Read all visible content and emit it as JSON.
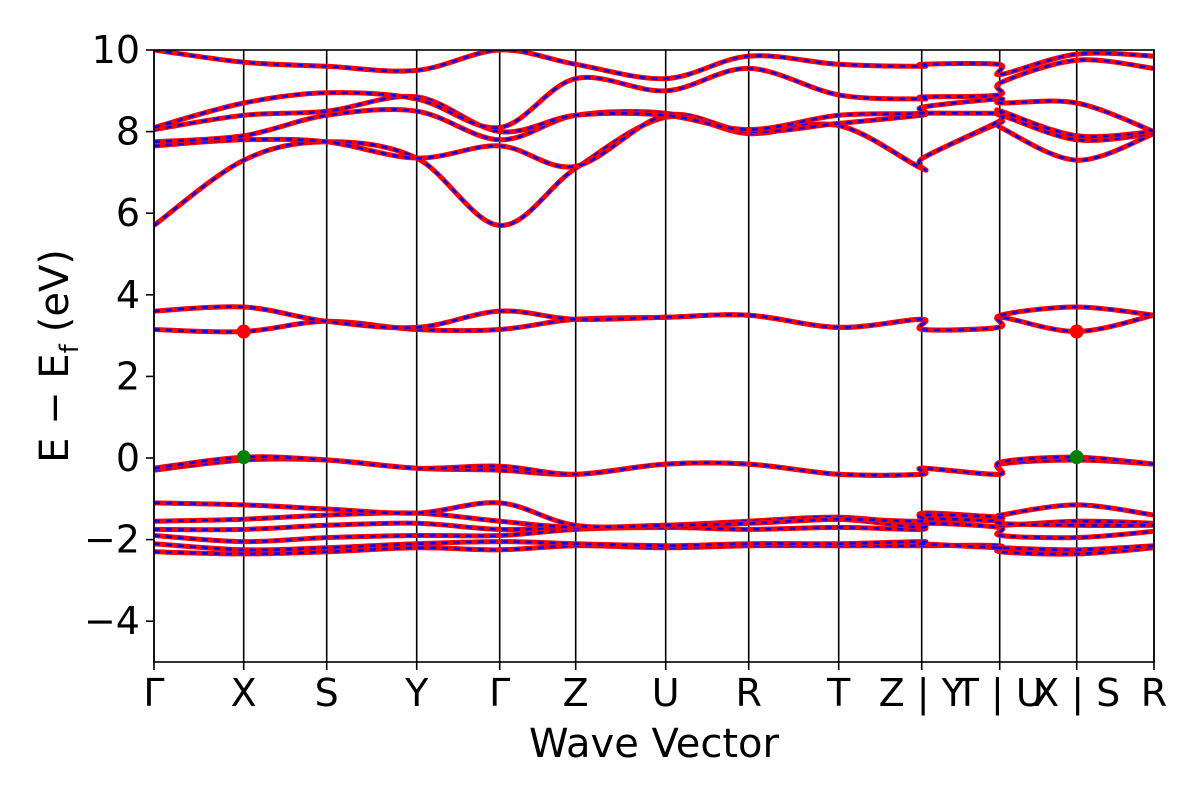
{
  "chart_data": {
    "type": "line",
    "title": "",
    "xlabel": "Wave Vector",
    "ylabel": "E − E",
    "ylabel_sub": "f",
    "ylabel_unit": "(eV)",
    "ylim": [
      -5,
      10
    ],
    "yticks": [
      -4,
      -2,
      0,
      2,
      4,
      6,
      8,
      10
    ],
    "ytick_labels": [
      "−4",
      "−2",
      "0",
      "2",
      "4",
      "6",
      "8",
      "10"
    ],
    "kpoints": [
      {
        "label": "Γ",
        "x": 0.0
      },
      {
        "label": "X",
        "x": 0.0897
      },
      {
        "label": "S",
        "x": 0.1727
      },
      {
        "label": "Y",
        "x": 0.2627
      },
      {
        "label": "Γ",
        "x": 0.3457
      },
      {
        "label": "Z",
        "x": 0.4217
      },
      {
        "label": "U",
        "x": 0.5117
      },
      {
        "label": "R",
        "x": 0.5947
      },
      {
        "label": "T",
        "x": 0.6847
      },
      {
        "label": "Z | Y",
        "x": 0.7677
      },
      {
        "label": "T | U",
        "x": 0.8457
      },
      {
        "label": "X | S",
        "x": 0.9227
      },
      {
        "label": "R",
        "x": 1.0
      }
    ],
    "line_colors": {
      "primary": "#ff0000",
      "secondary": "#0000ff"
    },
    "markers": [
      {
        "x": 0.0897,
        "y": 3.1,
        "color": "#ff0000"
      },
      {
        "x": 0.0897,
        "y": 0.02,
        "color": "#008000"
      },
      {
        "x": 0.9227,
        "y": 3.1,
        "color": "#ff0000"
      },
      {
        "x": 0.9227,
        "y": 0.02,
        "color": "#008000"
      }
    ],
    "bands": [
      {
        "name": "v1",
        "x": [
          0,
          0.0897,
          0.1727,
          0.2627,
          0.3457,
          0.4217,
          0.5117,
          0.5947,
          0.6847,
          0.7677,
          0.7687,
          0.8447,
          0.8467,
          0.9227,
          1.0
        ],
        "y": [
          -2.3,
          -2.35,
          -2.3,
          -2.2,
          -2.25,
          -2.15,
          -2.2,
          -2.15,
          -2.15,
          -2.15,
          -2.15,
          -2.15,
          -2.3,
          -2.35,
          -2.2
        ]
      },
      {
        "name": "v2",
        "x": [
          0,
          0.0897,
          0.1727,
          0.2627,
          0.3457,
          0.4217,
          0.5117,
          0.5947,
          0.6847,
          0.7677,
          0.7687,
          0.8447,
          0.8467,
          0.9227,
          1.0
        ],
        "y": [
          -2.1,
          -2.25,
          -2.2,
          -2.1,
          -2.05,
          -2.1,
          -2.15,
          -2.1,
          -2.1,
          -2.05,
          -2.1,
          -2.2,
          -2.2,
          -2.25,
          -2.15
        ]
      },
      {
        "name": "v3",
        "x": [
          0,
          0.0897,
          0.1727,
          0.2627,
          0.3457,
          0.4217,
          0.5117,
          0.5947,
          0.6847,
          0.7677,
          0.7687,
          0.8447,
          0.8467,
          0.9227,
          1.0
        ],
        "y": [
          -1.9,
          -2.05,
          -1.95,
          -1.9,
          -1.9,
          -1.75,
          -1.7,
          -1.75,
          -1.7,
          -1.75,
          -1.6,
          -1.7,
          -1.9,
          -1.95,
          -1.8
        ]
      },
      {
        "name": "v4",
        "x": [
          0,
          0.0897,
          0.1727,
          0.2627,
          0.3457,
          0.4217,
          0.5117,
          0.5947,
          0.6847,
          0.7677,
          0.7687,
          0.8447,
          0.8467,
          0.9227,
          1.0
        ],
        "y": [
          -1.75,
          -1.75,
          -1.65,
          -1.6,
          -1.75,
          -1.7,
          -1.7,
          -1.6,
          -1.5,
          -1.7,
          -1.5,
          -1.55,
          -1.65,
          -1.55,
          -1.6
        ]
      },
      {
        "name": "v5",
        "x": [
          0,
          0.0897,
          0.1727,
          0.2627,
          0.3457,
          0.4217,
          0.5117,
          0.5947,
          0.6847,
          0.7677,
          0.7687,
          0.8447,
          0.8467,
          0.9227,
          1.0
        ],
        "y": [
          -1.55,
          -1.5,
          -1.4,
          -1.35,
          -1.55,
          -1.7,
          -1.65,
          -1.55,
          -1.45,
          -1.6,
          -1.35,
          -1.45,
          -1.4,
          -1.15,
          -1.4
        ]
      },
      {
        "name": "v6",
        "x": [
          0,
          0.0897,
          0.1727,
          0.2627,
          0.3457,
          0.4217,
          0.5117,
          0.5947,
          0.6847,
          0.7677,
          0.7687,
          0.8447,
          0.8467,
          0.9227,
          1.0
        ],
        "y": [
          -1.1,
          -1.15,
          -1.25,
          -1.35,
          -1.1,
          -1.65,
          -1.65,
          -1.6,
          -1.5,
          -1.55,
          -1.4,
          -1.45,
          -1.6,
          -1.65,
          -1.65
        ]
      },
      {
        "name": "v7",
        "x": [
          0,
          0.0897,
          0.1727,
          0.2627,
          0.3457,
          0.4217,
          0.5117,
          0.5947,
          0.6847,
          0.7677,
          0.7687,
          0.8447,
          0.8467,
          0.9227,
          1.0
        ],
        "y": [
          -0.3,
          -0.05,
          -0.05,
          -0.25,
          -0.3,
          -0.4,
          -0.15,
          -0.15,
          -0.4,
          -0.4,
          -0.25,
          -0.4,
          -0.15,
          -0.05,
          -0.15
        ]
      },
      {
        "name": "v8",
        "x": [
          0,
          0.0897,
          0.1727,
          0.2627,
          0.3457,
          0.4217,
          0.5117,
          0.5947,
          0.6847,
          0.7677,
          0.7687,
          0.8447,
          0.8467,
          0.9227,
          1.0
        ],
        "y": [
          -0.25,
          0.02,
          -0.05,
          -0.25,
          -0.2,
          -0.4,
          -0.15,
          -0.15,
          -0.4,
          -0.4,
          -0.25,
          -0.4,
          -0.1,
          0.02,
          -0.15
        ]
      },
      {
        "name": "c1",
        "x": [
          0,
          0.0897,
          0.1727,
          0.2627,
          0.3457,
          0.4217,
          0.5117,
          0.5947,
          0.6847,
          0.7677,
          0.7687,
          0.8447,
          0.8467,
          0.9227,
          1.0
        ],
        "y": [
          3.15,
          3.1,
          3.35,
          3.15,
          3.15,
          3.4,
          3.45,
          3.5,
          3.2,
          3.4,
          3.15,
          3.2,
          3.45,
          3.1,
          3.5
        ]
      },
      {
        "name": "c2",
        "x": [
          0,
          0.0897,
          0.1727,
          0.2627,
          0.3457,
          0.4217,
          0.5117,
          0.5947,
          0.6847,
          0.7677,
          0.7687,
          0.8447,
          0.8467,
          0.9227,
          1.0
        ],
        "y": [
          3.6,
          3.7,
          3.35,
          3.2,
          3.6,
          3.4,
          3.45,
          3.5,
          3.2,
          3.4,
          3.15,
          3.2,
          3.5,
          3.7,
          3.5
        ]
      },
      {
        "name": "c3",
        "x": [
          0,
          0.0897,
          0.1727,
          0.2627,
          0.3457,
          0.4217,
          0.5117,
          0.5947,
          0.6847,
          0.7677,
          0.7687,
          0.8447,
          0.8467,
          0.9227,
          1.0
        ],
        "y": [
          5.7,
          7.3,
          7.75,
          7.35,
          5.7,
          7.1,
          8.35,
          7.95,
          8.15,
          7.1,
          7.35,
          8.2,
          8.1,
          7.3,
          7.95
        ]
      },
      {
        "name": "c4",
        "x": [
          0,
          0.0897,
          0.1727,
          0.2627,
          0.3457,
          0.4217,
          0.5117,
          0.5947,
          0.6847,
          0.7677,
          0.7687,
          0.8447,
          0.8467,
          0.9227,
          1.0
        ],
        "y": [
          7.65,
          7.8,
          7.75,
          7.35,
          7.65,
          7.15,
          8.4,
          8.0,
          8.15,
          7.1,
          7.35,
          8.25,
          8.4,
          7.8,
          7.95
        ]
      },
      {
        "name": "c5",
        "x": [
          0,
          0.0897,
          0.1727,
          0.2627,
          0.3457,
          0.4217,
          0.5117,
          0.5947,
          0.6847,
          0.7677,
          0.7687,
          0.8447,
          0.8467,
          0.9227,
          1.0
        ],
        "y": [
          7.75,
          7.9,
          8.4,
          8.5,
          7.8,
          8.4,
          8.45,
          8.0,
          8.2,
          8.4,
          8.45,
          8.45,
          8.5,
          7.9,
          8.0
        ]
      },
      {
        "name": "c6",
        "x": [
          0,
          0.0897,
          0.1727,
          0.2627,
          0.3457,
          0.4217,
          0.5117,
          0.5947,
          0.6847,
          0.7677,
          0.7687,
          0.8447,
          0.8467,
          0.9227,
          1.0
        ],
        "y": [
          8.05,
          8.4,
          8.5,
          8.85,
          8.0,
          8.4,
          8.4,
          8.05,
          8.4,
          8.45,
          8.6,
          8.8,
          8.7,
          8.7,
          8.0
        ]
      },
      {
        "name": "c7",
        "x": [
          0,
          0.0897,
          0.1727,
          0.2627,
          0.3457,
          0.4217,
          0.5117,
          0.5947,
          0.6847,
          0.7677,
          0.7687,
          0.8447,
          0.8467,
          0.9227,
          1.0
        ],
        "y": [
          8.1,
          8.7,
          8.95,
          8.8,
          8.1,
          9.3,
          9.0,
          9.55,
          8.9,
          8.8,
          8.85,
          8.9,
          9.2,
          9.75,
          9.55
        ]
      },
      {
        "name": "c8",
        "x": [
          0,
          0.0897,
          0.1727,
          0.2627,
          0.3457,
          0.4217,
          0.5117,
          0.5947,
          0.6847,
          0.7677,
          0.7687,
          0.8447,
          0.8467,
          0.9227,
          1.0
        ],
        "y": [
          10.0,
          9.7,
          9.6,
          9.5,
          10.0,
          9.65,
          9.3,
          9.85,
          9.65,
          9.6,
          9.65,
          9.65,
          9.4,
          9.9,
          9.85
        ]
      }
    ]
  }
}
